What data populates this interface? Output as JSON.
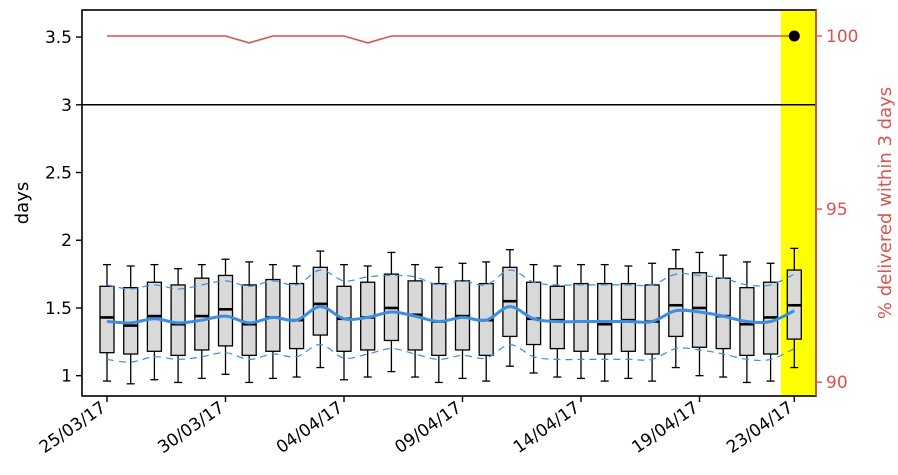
{
  "chart_data": {
    "type": "box",
    "xlabel": "",
    "ylabel": "days",
    "ylabel_right": "% delivered within 3 days",
    "ylim": [
      0.85,
      3.7
    ],
    "ylim_right": [
      89.6,
      100.75
    ],
    "yticks": [
      1,
      1.5,
      2,
      2.5,
      3,
      3.5
    ],
    "ytick_labels": [
      "1",
      "1.5",
      "2",
      "2.5",
      "3",
      "3.5"
    ],
    "yticks_right": [
      90,
      95,
      100
    ],
    "ytick_labels_right": [
      "90",
      "95",
      "100"
    ],
    "xtick_indices": [
      0,
      5,
      10,
      15,
      20,
      25,
      29
    ],
    "xtick_labels": [
      "25/03/17",
      "30/03/17",
      "04/04/17",
      "09/04/17",
      "14/04/17",
      "19/04/17",
      "23/04/17"
    ],
    "threshold": 3,
    "highlight_index": 29,
    "colors": {
      "box_fill": "#d9d9d9",
      "trend": "#3c8fe0",
      "band": "#3c8fe0",
      "pct_line": "#d9534f",
      "highlight": "#ffff00",
      "threshold": "#000000",
      "right_axis": "#d9534f"
    },
    "boxes": [
      {
        "whislo": 0.96,
        "q1": 1.17,
        "med": 1.43,
        "q3": 1.66,
        "whishi": 1.82
      },
      {
        "whislo": 0.94,
        "q1": 1.16,
        "med": 1.37,
        "q3": 1.65,
        "whishi": 1.81
      },
      {
        "whislo": 0.97,
        "q1": 1.18,
        "med": 1.44,
        "q3": 1.69,
        "whishi": 1.82
      },
      {
        "whislo": 0.95,
        "q1": 1.15,
        "med": 1.38,
        "q3": 1.67,
        "whishi": 1.79
      },
      {
        "whislo": 0.98,
        "q1": 1.19,
        "med": 1.44,
        "q3": 1.72,
        "whishi": 1.82
      },
      {
        "whislo": 1.01,
        "q1": 1.22,
        "med": 1.49,
        "q3": 1.74,
        "whishi": 1.86
      },
      {
        "whislo": 0.95,
        "q1": 1.15,
        "med": 1.38,
        "q3": 1.67,
        "whishi": 1.84
      },
      {
        "whislo": 0.98,
        "q1": 1.18,
        "med": 1.43,
        "q3": 1.71,
        "whishi": 1.82
      },
      {
        "whislo": 0.99,
        "q1": 1.2,
        "med": 1.41,
        "q3": 1.68,
        "whishi": 1.81
      },
      {
        "whislo": 1.06,
        "q1": 1.3,
        "med": 1.53,
        "q3": 1.8,
        "whishi": 1.92
      },
      {
        "whislo": 0.97,
        "q1": 1.18,
        "med": 1.42,
        "q3": 1.66,
        "whishi": 1.82
      },
      {
        "whislo": 0.99,
        "q1": 1.19,
        "med": 1.43,
        "q3": 1.69,
        "whishi": 1.81
      },
      {
        "whislo": 1.03,
        "q1": 1.26,
        "med": 1.5,
        "q3": 1.75,
        "whishi": 1.91
      },
      {
        "whislo": 0.99,
        "q1": 1.19,
        "med": 1.45,
        "q3": 1.7,
        "whishi": 1.82
      },
      {
        "whislo": 0.95,
        "q1": 1.15,
        "med": 1.4,
        "q3": 1.68,
        "whishi": 1.8
      },
      {
        "whislo": 0.98,
        "q1": 1.19,
        "med": 1.44,
        "q3": 1.7,
        "whishi": 1.83
      },
      {
        "whislo": 0.96,
        "q1": 1.15,
        "med": 1.41,
        "q3": 1.68,
        "whishi": 1.84
      },
      {
        "whislo": 1.07,
        "q1": 1.29,
        "med": 1.55,
        "q3": 1.8,
        "whishi": 1.93
      },
      {
        "whislo": 1.02,
        "q1": 1.23,
        "med": 1.42,
        "q3": 1.69,
        "whishi": 1.82
      },
      {
        "whislo": 0.99,
        "q1": 1.2,
        "med": 1.41,
        "q3": 1.66,
        "whishi": 1.81
      },
      {
        "whislo": 0.98,
        "q1": 1.18,
        "med": 1.4,
        "q3": 1.68,
        "whishi": 1.82
      },
      {
        "whislo": 0.96,
        "q1": 1.16,
        "med": 1.38,
        "q3": 1.68,
        "whishi": 1.82
      },
      {
        "whislo": 0.98,
        "q1": 1.18,
        "med": 1.41,
        "q3": 1.68,
        "whishi": 1.81
      },
      {
        "whislo": 0.96,
        "q1": 1.16,
        "med": 1.4,
        "q3": 1.67,
        "whishi": 1.83
      },
      {
        "whislo": 1.06,
        "q1": 1.29,
        "med": 1.52,
        "q3": 1.79,
        "whishi": 1.93
      },
      {
        "whislo": 1.0,
        "q1": 1.21,
        "med": 1.5,
        "q3": 1.76,
        "whishi": 1.91
      },
      {
        "whislo": 0.99,
        "q1": 1.2,
        "med": 1.44,
        "q3": 1.72,
        "whishi": 1.89
      },
      {
        "whislo": 0.95,
        "q1": 1.15,
        "med": 1.38,
        "q3": 1.65,
        "whishi": 1.84
      },
      {
        "whislo": 0.96,
        "q1": 1.16,
        "med": 1.43,
        "q3": 1.69,
        "whishi": 1.83
      },
      {
        "whislo": 1.06,
        "q1": 1.27,
        "med": 1.52,
        "q3": 1.78,
        "whishi": 1.94
      }
    ],
    "trend": [
      1.4,
      1.39,
      1.42,
      1.39,
      1.41,
      1.44,
      1.39,
      1.43,
      1.41,
      1.51,
      1.42,
      1.43,
      1.47,
      1.44,
      1.4,
      1.43,
      1.41,
      1.51,
      1.42,
      1.4,
      1.4,
      1.4,
      1.4,
      1.4,
      1.48,
      1.47,
      1.44,
      1.4,
      1.4,
      1.48
    ],
    "band_upper": [
      1.67,
      1.64,
      1.67,
      1.64,
      1.67,
      1.7,
      1.66,
      1.7,
      1.67,
      1.78,
      1.7,
      1.73,
      1.74,
      1.73,
      1.67,
      1.7,
      1.67,
      1.78,
      1.69,
      1.67,
      1.67,
      1.67,
      1.67,
      1.67,
      1.75,
      1.74,
      1.72,
      1.67,
      1.67,
      1.75
    ],
    "band_lower": [
      1.12,
      1.1,
      1.14,
      1.12,
      1.14,
      1.17,
      1.12,
      1.16,
      1.14,
      1.23,
      1.13,
      1.16,
      1.2,
      1.16,
      1.12,
      1.15,
      1.13,
      1.23,
      1.14,
      1.12,
      1.12,
      1.12,
      1.12,
      1.12,
      1.2,
      1.19,
      1.16,
      1.12,
      1.12,
      1.2
    ],
    "pct_delivered": [
      100,
      100,
      100,
      100,
      100,
      100,
      99.8,
      100,
      100,
      100,
      100,
      99.8,
      100,
      100,
      100,
      100,
      100,
      100,
      100,
      100,
      100,
      100,
      100,
      100,
      100,
      100,
      100,
      100,
      100,
      100
    ]
  }
}
